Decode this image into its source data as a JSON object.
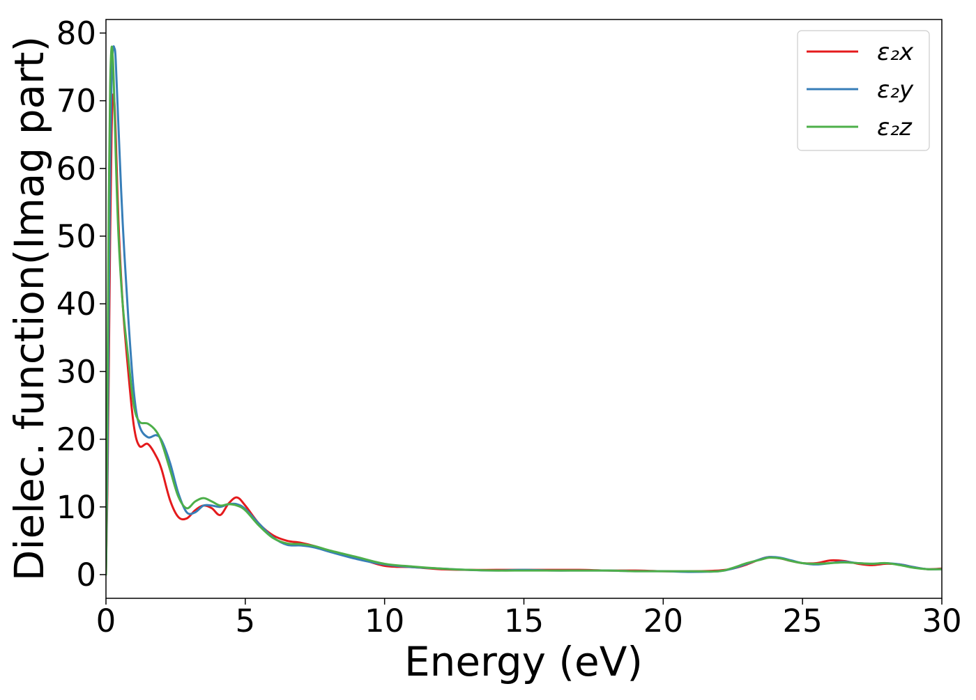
{
  "chart_data": {
    "type": "line",
    "title": "",
    "xlabel": "Energy (eV)",
    "ylabel": "Dielec. function(Imag part)",
    "xlim": [
      0,
      30
    ],
    "ylim": [
      -3.5,
      82
    ],
    "xticks": [
      0,
      5,
      10,
      15,
      20,
      25,
      30
    ],
    "xtick_labels": [
      "0",
      "5",
      "10",
      "15",
      "20",
      "25",
      "30"
    ],
    "yticks": [
      0,
      10,
      20,
      30,
      40,
      50,
      60,
      70,
      80
    ],
    "ytick_labels": [
      "0",
      "10",
      "20",
      "30",
      "40",
      "50",
      "60",
      "70",
      "80"
    ],
    "grid": false,
    "legend_position": "top-right",
    "series": [
      {
        "name": "ε₂x",
        "color": "#e41a1c",
        "x": [
          0,
          0.05,
          0.1,
          0.15,
          0.2,
          0.25,
          0.3,
          0.35,
          0.45,
          0.6,
          0.8,
          1.0,
          1.2,
          1.5,
          1.8,
          2.0,
          2.3,
          2.6,
          2.9,
          3.2,
          3.5,
          3.8,
          4.1,
          4.4,
          4.7,
          5.0,
          5.5,
          6.0,
          6.5,
          7.0,
          7.5,
          8.0,
          9.0,
          10.0,
          11.0,
          12.0,
          13.0,
          14.0,
          15.0,
          16.0,
          17.0,
          18.0,
          19.0,
          20.0,
          21.0,
          22.0,
          22.5,
          23.0,
          23.5,
          23.8,
          24.2,
          24.6,
          25.0,
          25.5,
          26.0,
          26.5,
          27.0,
          27.5,
          28.0,
          28.5,
          29.0,
          29.5,
          30.0
        ],
        "y": [
          0,
          12,
          30,
          50,
          65,
          70.5,
          70,
          65,
          52,
          40,
          30,
          22,
          19,
          19.3,
          17.5,
          15.5,
          11,
          8.5,
          8.3,
          9.5,
          10.2,
          9.8,
          8.8,
          10.5,
          11.4,
          10.2,
          7.5,
          5.8,
          5,
          4.7,
          4.2,
          3.5,
          2.5,
          1.3,
          1.1,
          0.8,
          0.7,
          0.7,
          0.7,
          0.7,
          0.7,
          0.6,
          0.6,
          0.5,
          0.5,
          0.6,
          0.9,
          1.5,
          2.3,
          2.6,
          2.4,
          2,
          1.7,
          1.7,
          2.1,
          2.0,
          1.6,
          1.4,
          1.6,
          1.5,
          1.1,
          0.8,
          0.9
        ]
      },
      {
        "name": "ε₂y",
        "color": "#377eb8",
        "x": [
          0,
          0.05,
          0.1,
          0.15,
          0.2,
          0.25,
          0.3,
          0.35,
          0.45,
          0.6,
          0.8,
          1.0,
          1.2,
          1.5,
          1.8,
          2.0,
          2.3,
          2.6,
          2.9,
          3.2,
          3.5,
          3.8,
          4.1,
          4.4,
          4.7,
          5.0,
          5.5,
          6.0,
          6.5,
          7.0,
          7.5,
          8.0,
          9.0,
          10.0,
          11.0,
          12.0,
          13.0,
          14.0,
          15.0,
          16.0,
          17.0,
          18.0,
          19.0,
          20.0,
          21.0,
          22.0,
          22.5,
          23.0,
          23.5,
          23.8,
          24.2,
          24.6,
          25.0,
          25.5,
          26.0,
          26.5,
          27.0,
          27.5,
          28.0,
          28.5,
          29.0,
          29.5,
          30.0
        ],
        "y": [
          0,
          15,
          38,
          60,
          73,
          77.5,
          77.8,
          76,
          66,
          52,
          38,
          27,
          22,
          20.3,
          20.6,
          19.8,
          16.5,
          12,
          9.2,
          9.2,
          10.2,
          10.2,
          10,
          10.4,
          10.4,
          9.7,
          7.5,
          5.5,
          4.4,
          4.3,
          4.0,
          3.4,
          2.3,
          1.5,
          1.1,
          0.9,
          0.7,
          0.6,
          0.7,
          0.6,
          0.6,
          0.6,
          0.5,
          0.5,
          0.4,
          0.5,
          0.9,
          1.6,
          2.3,
          2.6,
          2.5,
          2.1,
          1.7,
          1.5,
          1.7,
          1.9,
          1.7,
          1.6,
          1.7,
          1.5,
          1.1,
          0.8,
          0.8
        ]
      },
      {
        "name": "ε₂z",
        "color": "#4daf4a",
        "x": [
          0,
          0.05,
          0.1,
          0.15,
          0.2,
          0.25,
          0.3,
          0.35,
          0.45,
          0.6,
          0.8,
          1.0,
          1.2,
          1.5,
          1.8,
          2.0,
          2.3,
          2.6,
          2.9,
          3.2,
          3.5,
          3.8,
          4.1,
          4.4,
          4.7,
          5.0,
          5.5,
          6.0,
          6.5,
          7.0,
          7.5,
          8.0,
          9.0,
          10.0,
          11.0,
          12.0,
          13.0,
          14.0,
          15.0,
          16.0,
          17.0,
          18.0,
          19.0,
          20.0,
          21.0,
          22.0,
          22.5,
          23.0,
          23.5,
          23.8,
          24.2,
          24.6,
          25.0,
          25.5,
          26.0,
          26.5,
          27.0,
          27.5,
          28.0,
          28.5,
          29.0,
          29.5,
          30.0
        ],
        "y": [
          0,
          25,
          55,
          72,
          77.8,
          76,
          70,
          62,
          50,
          40,
          32,
          25,
          22.6,
          22.3,
          21.2,
          19.5,
          15.5,
          11.5,
          9.8,
          10.8,
          11.3,
          10.8,
          10.2,
          10.4,
          10.2,
          9.5,
          7.2,
          5.4,
          4.6,
          4.5,
          4.2,
          3.6,
          2.6,
          1.6,
          1.2,
          0.9,
          0.7,
          0.6,
          0.6,
          0.6,
          0.6,
          0.6,
          0.5,
          0.5,
          0.5,
          0.5,
          1.0,
          1.7,
          2.2,
          2.5,
          2.4,
          2.0,
          1.7,
          1.6,
          1.7,
          1.8,
          1.7,
          1.6,
          1.7,
          1.4,
          1.0,
          0.8,
          0.8
        ]
      }
    ]
  }
}
